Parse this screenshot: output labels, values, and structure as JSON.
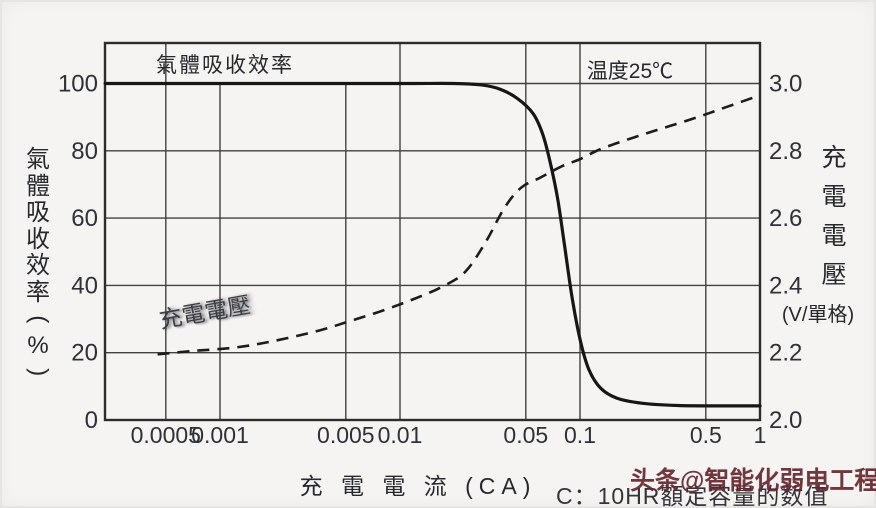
{
  "watermark": {
    "text": "头条@智能化弱电工程",
    "color": "#67262f"
  },
  "chart_data": {
    "type": "line",
    "title_inside": "氣體吸收效率",
    "annotation_temp": "温度25℃",
    "xlabel": "充 電 電 流 (CA)",
    "note": "C：10HR額定容量的数值",
    "x_scale": "log",
    "x_range": [
      0.00023,
      1
    ],
    "x_ticks": [
      0.0005,
      0.001,
      0.005,
      0.01,
      0.05,
      0.1,
      0.5,
      1
    ],
    "x_tick_labels": [
      "0.0005",
      "0.001",
      "0.005",
      "0.01",
      "0.05",
      "0.1",
      "0.5",
      "1"
    ],
    "grid": true,
    "legend_position": "labels-in-plot",
    "y_left": {
      "label": "氣體吸收效率(%)",
      "ticks": [
        100,
        80,
        60,
        40,
        20,
        0
      ],
      "range": [
        0,
        112
      ]
    },
    "y_right": {
      "label": "充電電壓",
      "unit": "(V/單格)",
      "ticks": [
        "3.0",
        "2.8",
        "2.6",
        "2.4",
        "2.2",
        "2.0"
      ],
      "range": [
        2.0,
        3.0
      ]
    },
    "series": [
      {
        "name": "氣體吸收效率",
        "axis": "left",
        "style": "solid",
        "color": "#161616",
        "points": [
          [
            0.00023,
            100
          ],
          [
            0.002,
            100
          ],
          [
            0.006,
            100
          ],
          [
            0.012,
            100
          ],
          [
            0.02,
            100
          ],
          [
            0.028,
            99.6
          ],
          [
            0.036,
            98.3
          ],
          [
            0.045,
            95.5
          ],
          [
            0.055,
            91
          ],
          [
            0.062,
            85
          ],
          [
            0.068,
            77
          ],
          [
            0.075,
            66
          ],
          [
            0.082,
            52
          ],
          [
            0.09,
            37
          ],
          [
            0.1,
            24
          ],
          [
            0.112,
            15
          ],
          [
            0.13,
            9.5
          ],
          [
            0.16,
            6.5
          ],
          [
            0.22,
            5
          ],
          [
            0.35,
            4.3
          ],
          [
            0.6,
            4.2
          ],
          [
            1,
            4.2
          ]
        ]
      },
      {
        "name": "充電電壓",
        "axis": "right",
        "style": "dashed",
        "color": "#1c1c1c",
        "label_in_plot": "充電電壓",
        "points": [
          [
            0.00045,
            2.195
          ],
          [
            0.0007,
            2.205
          ],
          [
            0.0012,
            2.215
          ],
          [
            0.002,
            2.235
          ],
          [
            0.0035,
            2.265
          ],
          [
            0.005,
            2.29
          ],
          [
            0.008,
            2.325
          ],
          [
            0.012,
            2.36
          ],
          [
            0.017,
            2.395
          ],
          [
            0.023,
            2.44
          ],
          [
            0.03,
            2.53
          ],
          [
            0.038,
            2.63
          ],
          [
            0.047,
            2.69
          ],
          [
            0.06,
            2.72
          ],
          [
            0.08,
            2.755
          ],
          [
            0.1,
            2.775
          ],
          [
            0.13,
            2.805
          ],
          [
            0.2,
            2.84
          ],
          [
            0.3,
            2.87
          ],
          [
            0.45,
            2.9
          ],
          [
            0.65,
            2.93
          ],
          [
            1,
            2.965
          ]
        ]
      }
    ]
  }
}
